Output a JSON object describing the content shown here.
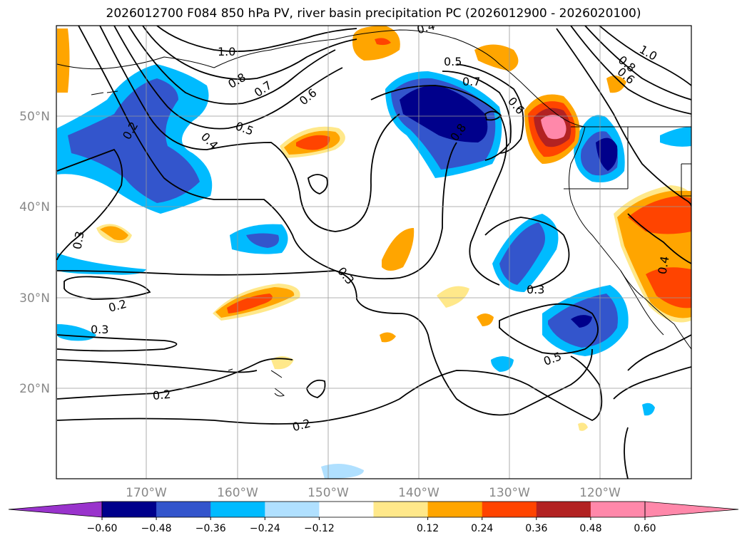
{
  "title": "2026012700 F084 850 hPa PV, river basin precipitation PC (2026012900 - 2026020100)",
  "axes": {
    "lon_ticks": [
      "170°W",
      "160°W",
      "150°W",
      "140°W",
      "130°W",
      "120°W"
    ],
    "lat_ticks": [
      "50°N",
      "40°N",
      "30°N",
      "20°N"
    ]
  },
  "contour_labels": {
    "l10a": "1.0",
    "l08a": "0.8",
    "l07a": "0.7",
    "l06a": "0.6",
    "l05a": "0.5",
    "l04a": "0.4",
    "l02a": "0.2",
    "l03a": "0.3",
    "l02b": "0.2",
    "l03b": "0.3",
    "l03c": "0.3",
    "l02c": "0.2",
    "l02d": "0.2",
    "l04b": "0.4",
    "l05b": "0.5",
    "l07b": "0.7",
    "l08b": "0.8",
    "l03d": "0.3",
    "l05c": "0.5",
    "l10b": "1.0",
    "l08c": "0.8",
    "l06b": "0.6",
    "l04c": "0.4",
    "l06c": "0.6"
  },
  "colorbar": {
    "colors": [
      "#9933cc",
      "#00008b",
      "#3355cc",
      "#00bbff",
      "#b0e0ff",
      "#ffffff",
      "#ffe88a",
      "#ffa500",
      "#ff4400",
      "#b22222",
      "#ff88aa",
      "#ff88aa"
    ],
    "tick_labels": [
      "−0.60",
      "−0.48",
      "−0.36",
      "−0.24",
      "−0.12",
      "0.12",
      "0.24",
      "0.36",
      "0.48",
      "0.60"
    ]
  }
}
